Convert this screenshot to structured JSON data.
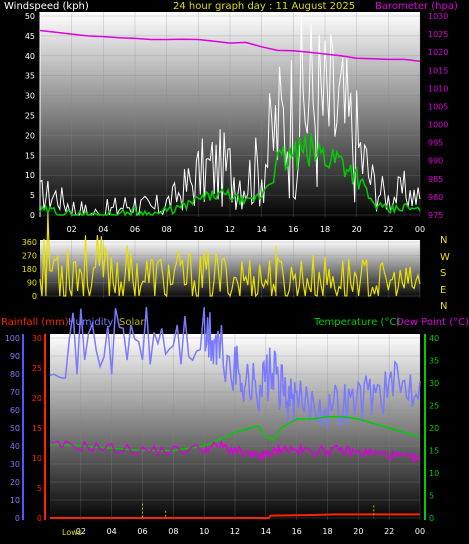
{
  "header": {
    "windspeed_label": "Windspeed (kph)",
    "title": "24 hour graph day : 11 August 2025",
    "barometer_label": "Barometer (hpa)"
  },
  "panel3_header": {
    "rainfall_label": "Rainfall (mm)",
    "humidity_label": "Humidity",
    "solar_label": "Solar",
    "temperature_label": "Temperature (°C)",
    "dewpoint_label": "Dew Point (°C)"
  },
  "compass": [
    "N",
    "W",
    "S",
    "E",
    "N"
  ],
  "lows_label": "Lows",
  "colors": {
    "wind": "#ffffff",
    "gust_green": "#00cc00",
    "barometer": "#dd00dd",
    "direction": "#e8e000",
    "humidity": "#7a7aff",
    "temperature": "#00cc00",
    "dewpoint": "#dd00dd",
    "rain": "#ff2200",
    "solar": "#bfb000"
  },
  "chart_data": [
    {
      "type": "line",
      "title": "24 hour graph day : 11 August 2025",
      "x_ticks": [
        "02",
        "04",
        "06",
        "08",
        "10",
        "12",
        "14",
        "16",
        "18",
        "20",
        "22",
        "00"
      ],
      "y_left": {
        "label": "Windspeed (kph)",
        "ylim": [
          0,
          50
        ],
        "ticks": [
          "0",
          "5",
          "10",
          "15",
          "20",
          "25",
          "30",
          "35",
          "40",
          "45",
          "50"
        ]
      },
      "y_right": {
        "label": "Barometer (hpa)",
        "ylim": [
          975,
          1030
        ],
        "ticks": [
          "975",
          "980",
          "985",
          "990",
          "995",
          "1000",
          "1005",
          "1010",
          "1015",
          "1020",
          "1025",
          "1030"
        ]
      },
      "series": [
        {
          "name": "Windspeed (kph)",
          "axis": "left",
          "x": [
            0,
            1,
            2,
            3,
            4,
            5,
            6,
            7,
            8,
            9,
            10,
            11,
            12,
            13,
            14,
            15,
            16,
            17,
            18,
            19,
            20,
            21,
            22,
            23,
            24
          ],
          "y": [
            5,
            5,
            2,
            0,
            0,
            2,
            3,
            1,
            3,
            6,
            10,
            12,
            11,
            9,
            12,
            22,
            25,
            30,
            27,
            25,
            18,
            8,
            4,
            6,
            4
          ]
        },
        {
          "name": "Wind average",
          "axis": "left",
          "x": [
            0,
            1,
            2,
            3,
            4,
            5,
            6,
            7,
            8,
            9,
            10,
            11,
            12,
            13,
            14,
            15,
            16,
            17,
            18,
            19,
            20,
            21,
            22,
            23,
            24
          ],
          "y": [
            1,
            1,
            0,
            0,
            0,
            0,
            1,
            0,
            1,
            2,
            4,
            5,
            5,
            3,
            5,
            13,
            15,
            16,
            15,
            14,
            10,
            3,
            1,
            2,
            1
          ]
        },
        {
          "name": "Barometer (hpa)",
          "axis": "right",
          "x": [
            0,
            1,
            2,
            3,
            4,
            5,
            6,
            7,
            8,
            9,
            10,
            11,
            12,
            13,
            14,
            15,
            16,
            17,
            18,
            19,
            20,
            21,
            22,
            23,
            24
          ],
          "y": [
            1026,
            1025.5,
            1025,
            1024.5,
            1024.3,
            1024,
            1023.8,
            1023.5,
            1023.5,
            1023.6,
            1023.5,
            1023,
            1022.5,
            1022.7,
            1021.5,
            1020.5,
            1020.4,
            1020,
            1019.5,
            1019,
            1018.3,
            1018.2,
            1018,
            1018,
            1017.5
          ]
        }
      ]
    },
    {
      "type": "line",
      "ylabel": "Wind direction",
      "ylim": [
        0,
        360
      ],
      "y_ticks": [
        "0",
        "90",
        "180",
        "270",
        "360"
      ],
      "x_ticks": [
        "02",
        "04",
        "06",
        "08",
        "10",
        "12",
        "14",
        "16",
        "18",
        "20",
        "22",
        "00"
      ],
      "series": [
        {
          "name": "Wind direction",
          "x": [
            0,
            1,
            2,
            3,
            4,
            5,
            6,
            7,
            8,
            9,
            10,
            11,
            12,
            13,
            14,
            15,
            16,
            17,
            18,
            19,
            20,
            21,
            22,
            23,
            24
          ],
          "y": [
            240,
            215,
            195,
            170,
            160,
            145,
            130,
            120,
            120,
            125,
            120,
            125,
            115,
            115,
            115,
            110,
            110,
            115,
            110,
            110,
            110,
            95,
            85,
            80,
            80
          ]
        }
      ]
    },
    {
      "type": "line",
      "x_ticks": [
        "02",
        "04",
        "06",
        "08",
        "10",
        "12",
        "14",
        "16",
        "18",
        "20",
        "22",
        "00"
      ],
      "y_left_humidity": {
        "label": "Humidity",
        "ylim": [
          0,
          100
        ],
        "ticks": [
          "0",
          "10",
          "20",
          "30",
          "40",
          "50",
          "60",
          "70",
          "80",
          "90",
          "100"
        ]
      },
      "y_left_rain": {
        "label": "Rainfall (mm)",
        "ylim": [
          0,
          30
        ],
        "ticks": [
          "0",
          "5",
          "10",
          "15",
          "20",
          "25",
          "30"
        ]
      },
      "y_right": {
        "label": "Temperature (°C)",
        "ylim": [
          0,
          40
        ],
        "ticks": [
          "0",
          "5",
          "10",
          "15",
          "20",
          "25",
          "30",
          "35",
          "40"
        ]
      },
      "series": [
        {
          "name": "Humidity",
          "axis": "humidity",
          "x": [
            0,
            2,
            4,
            6,
            8,
            10,
            10.6,
            11,
            12,
            12.5,
            13,
            13.5,
            14,
            14.5,
            15,
            15.5,
            16,
            17,
            18,
            19,
            20,
            21,
            22,
            23,
            24
          ],
          "y": [
            97,
            97,
            98,
            98,
            98,
            98,
            98,
            92,
            82,
            78,
            74,
            72,
            78,
            80,
            72,
            66,
            64,
            64,
            62,
            64,
            66,
            70,
            72,
            74,
            76
          ]
        },
        {
          "name": "Temperature (°C)",
          "axis": "right",
          "x": [
            0,
            2,
            4,
            6,
            8,
            10,
            11,
            12,
            13,
            13.5,
            14,
            14.5,
            15,
            16,
            17,
            18,
            19,
            20,
            21,
            22,
            23,
            24
          ],
          "y": [
            16.5,
            16,
            15.5,
            15,
            15,
            16,
            17.5,
            19,
            20,
            20.5,
            18,
            17.5,
            20,
            22,
            22,
            22.5,
            22.5,
            22,
            21,
            20,
            19,
            18
          ]
        },
        {
          "name": "Dew Point (°C)",
          "axis": "right",
          "x": [
            0,
            2,
            4,
            6,
            8,
            10,
            11,
            12,
            13,
            13.5,
            14,
            14.5,
            15,
            16,
            17,
            18,
            19,
            20,
            21,
            22,
            23,
            24
          ],
          "y": [
            16,
            16,
            15.5,
            15,
            15,
            15.5,
            16,
            15,
            14,
            13.5,
            14,
            14.5,
            15.5,
            15,
            15,
            15,
            15,
            14.5,
            14.5,
            14,
            13.5,
            13
          ]
        },
        {
          "name": "Rainfall (mm)",
          "axis": "rain",
          "x": [
            0,
            14.2,
            14.3,
            17,
            18.5,
            24
          ],
          "y": [
            0,
            0,
            0.4,
            0.5,
            0.6,
            0.6
          ]
        },
        {
          "name": "Solar",
          "axis": "humidity",
          "x": [
            6,
            7.5,
            21
          ],
          "y": [
            8,
            4,
            7
          ]
        }
      ]
    }
  ]
}
